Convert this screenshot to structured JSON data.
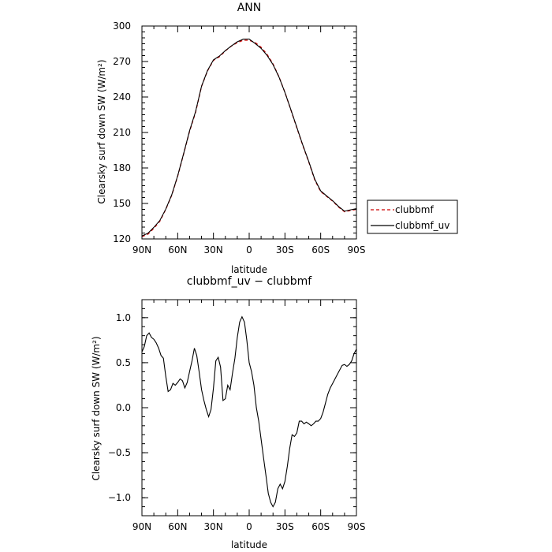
{
  "chart_data": [
    {
      "type": "line",
      "title": "ANN",
      "xlabel": "latitude",
      "ylabel": "Clearsky surf down SW (W/m²)",
      "x_ticks": [
        -90,
        -60,
        -30,
        0,
        30,
        60,
        90
      ],
      "x_tick_labels": [
        "90N",
        "60N",
        "30N",
        "0",
        "30S",
        "60S",
        "90S"
      ],
      "xlim": [
        -90,
        90
      ],
      "y_ticks": [
        120,
        150,
        180,
        210,
        240,
        270,
        300
      ],
      "y_tick_labels": [
        "120",
        "150",
        "180",
        "210",
        "240",
        "270",
        "300"
      ],
      "ylim": [
        120,
        300
      ],
      "legend_position": "right",
      "legend_entries": [
        "clubbmf",
        "clubbmf_uv"
      ],
      "series": [
        {
          "name": "clubbmf",
          "color": "#cc0000",
          "dashed": true,
          "x": [
            -90,
            -85,
            -80,
            -75,
            -70,
            -65,
            -60,
            -55,
            -50,
            -45,
            -40,
            -35,
            -30,
            -25,
            -20,
            -15,
            -10,
            -5,
            0,
            5,
            10,
            15,
            20,
            25,
            30,
            35,
            40,
            45,
            50,
            55,
            60,
            65,
            70,
            75,
            80,
            85,
            90
          ],
          "values": [
            122,
            124,
            129,
            135,
            145,
            157,
            173,
            192,
            211,
            227,
            249,
            262,
            271,
            274,
            279,
            283,
            286,
            288,
            288,
            286,
            282,
            276,
            268,
            257,
            244,
            229,
            214,
            199,
            185,
            170,
            160,
            156,
            152,
            147,
            143,
            144,
            145
          ]
        },
        {
          "name": "clubbmf_uv",
          "color": "#000000",
          "dashed": false,
          "x": [
            -90,
            -85,
            -80,
            -75,
            -70,
            -65,
            -60,
            -55,
            -50,
            -45,
            -40,
            -35,
            -30,
            -25,
            -20,
            -15,
            -10,
            -5,
            0,
            5,
            10,
            15,
            20,
            25,
            30,
            35,
            40,
            45,
            50,
            55,
            60,
            65,
            70,
            75,
            80,
            85,
            90
          ],
          "values": [
            122.6,
            124.8,
            129.8,
            135.6,
            145.2,
            157.3,
            173.3,
            192.2,
            211.5,
            227.7,
            249.1,
            262.3,
            271.4,
            274.6,
            279.2,
            283.1,
            286.7,
            288.9,
            289,
            285.2,
            281.1,
            275.1,
            267.4,
            256.9,
            243.9,
            229.2,
            214.4,
            199.3,
            185.4,
            170.6,
            160.6,
            156.4,
            152.3,
            147.5,
            143.5,
            144.6,
            145.7
          ]
        }
      ]
    },
    {
      "type": "line",
      "title": "clubbmf_uv − clubbmf",
      "xlabel": "latitude",
      "ylabel": "Clearsky surf down SW (W/m²)",
      "x_ticks": [
        -90,
        -60,
        -30,
        0,
        30,
        60,
        90
      ],
      "x_tick_labels": [
        "90N",
        "60N",
        "30N",
        "0",
        "30S",
        "60S",
        "90S"
      ],
      "xlim": [
        -90,
        90
      ],
      "y_ticks": [
        -1.0,
        -0.5,
        0.0,
        0.5,
        1.0
      ],
      "y_tick_labels": [
        "−1.0",
        "−0.5",
        "0.0",
        "0.5",
        "1.0"
      ],
      "ylim": [
        -1.2,
        1.2
      ],
      "series": [
        {
          "color": "#000000",
          "dashed": false,
          "x": [
            -90,
            -88,
            -86,
            -84,
            -82,
            -80,
            -78,
            -76,
            -74,
            -72,
            -70,
            -68,
            -66,
            -64,
            -62,
            -60,
            -58,
            -56,
            -54,
            -52,
            -50,
            -48,
            -46,
            -44,
            -42,
            -40,
            -38,
            -36,
            -34,
            -32,
            -30,
            -28,
            -26,
            -24,
            -22,
            -20,
            -18,
            -16,
            -14,
            -12,
            -10,
            -8,
            -6,
            -4,
            -2,
            0,
            2,
            4,
            6,
            8,
            10,
            12,
            14,
            16,
            18,
            20,
            22,
            24,
            26,
            28,
            30,
            32,
            34,
            36,
            38,
            40,
            42,
            44,
            46,
            48,
            50,
            52,
            54,
            56,
            58,
            60,
            62,
            64,
            66,
            68,
            70,
            72,
            74,
            76,
            78,
            80,
            82,
            84,
            86,
            88,
            90
          ],
          "values": [
            0.62,
            0.68,
            0.8,
            0.83,
            0.78,
            0.76,
            0.72,
            0.66,
            0.58,
            0.55,
            0.35,
            0.18,
            0.2,
            0.27,
            0.25,
            0.28,
            0.32,
            0.3,
            0.22,
            0.28,
            0.4,
            0.52,
            0.66,
            0.58,
            0.4,
            0.2,
            0.08,
            -0.02,
            -0.1,
            -0.02,
            0.22,
            0.52,
            0.56,
            0.45,
            0.08,
            0.1,
            0.25,
            0.2,
            0.38,
            0.55,
            0.78,
            0.95,
            1.01,
            0.95,
            0.75,
            0.5,
            0.4,
            0.25,
            0.0,
            -0.15,
            -0.35,
            -0.55,
            -0.75,
            -0.95,
            -1.05,
            -1.1,
            -1.05,
            -0.9,
            -0.85,
            -0.9,
            -0.82,
            -0.65,
            -0.45,
            -0.3,
            -0.32,
            -0.28,
            -0.15,
            -0.15,
            -0.18,
            -0.16,
            -0.18,
            -0.2,
            -0.18,
            -0.15,
            -0.15,
            -0.12,
            -0.05,
            0.05,
            0.15,
            0.22,
            0.27,
            0.32,
            0.37,
            0.42,
            0.47,
            0.48,
            0.46,
            0.48,
            0.52,
            0.6,
            0.65
          ]
        }
      ]
    }
  ]
}
